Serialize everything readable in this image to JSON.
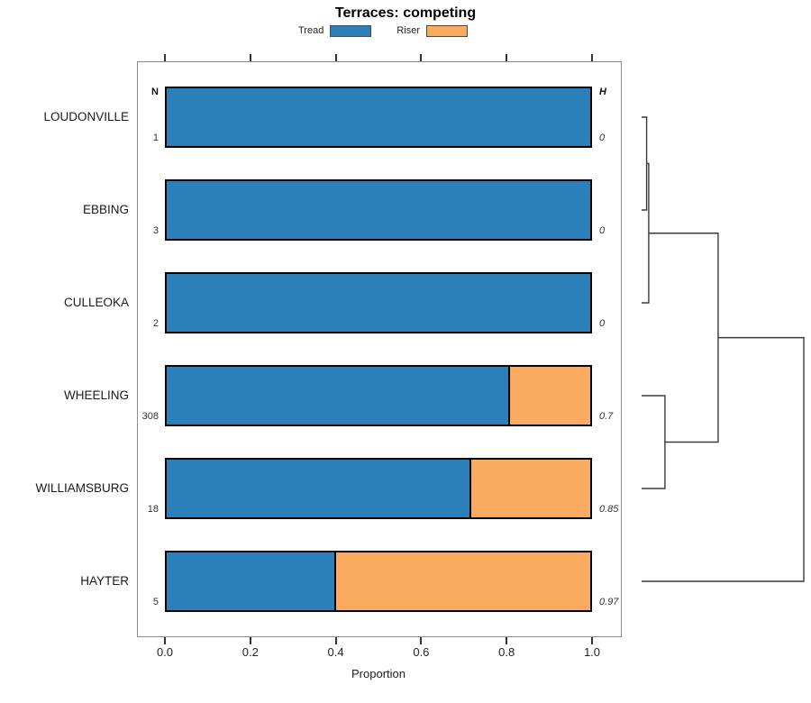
{
  "title": "Terraces: competing",
  "legend": {
    "items": [
      {
        "label": "Tread",
        "color": "#2C80B9"
      },
      {
        "label": "Riser",
        "color": "#FBAB60"
      }
    ]
  },
  "columns": {
    "n_header": "N",
    "h_header": "H"
  },
  "x_axis": {
    "label": "Proportion",
    "tick_labels": [
      "0.0",
      "0.2",
      "0.4",
      "0.6",
      "0.8",
      "1.0"
    ],
    "tick_values": [
      0,
      0.2,
      0.4,
      0.6,
      0.8,
      1.0
    ]
  },
  "chart_data": {
    "type": "bar",
    "orientation": "horizontal-stacked",
    "title": "Terraces: competing",
    "xlabel": "Proportion",
    "xlim": [
      0,
      1
    ],
    "legend_position": "top-center",
    "categories": [
      "LOUDONVILLE",
      "EBBING",
      "CULLEOKA",
      "WHEELING",
      "WILLIAMSBURG",
      "HAYTER"
    ],
    "series": [
      {
        "name": "Tread",
        "color": "#2C80B9",
        "values": [
          1.0,
          1.0,
          1.0,
          0.81,
          0.72,
          0.4
        ]
      },
      {
        "name": "Riser",
        "color": "#FBAB60",
        "values": [
          0.0,
          0.0,
          0.0,
          0.19,
          0.28,
          0.6
        ]
      }
    ],
    "n_values": [
      "1",
      "3",
      "2",
      "308",
      "18",
      "5"
    ],
    "h_values": [
      "0",
      "0",
      "0",
      "0.7",
      "0.85",
      "0.97"
    ],
    "dendrogram": {
      "orientation": "right",
      "merges": [
        {
          "children": [
            0,
            1
          ],
          "height": 0.031
        },
        {
          "children": [
            "m0",
            2
          ],
          "height": 0.044
        },
        {
          "children": [
            3,
            4
          ],
          "height": 0.144
        },
        {
          "children": [
            "m1",
            "m2"
          ],
          "height": 0.472
        },
        {
          "children": [
            "m3",
            5
          ],
          "height": 1.0
        }
      ]
    }
  }
}
